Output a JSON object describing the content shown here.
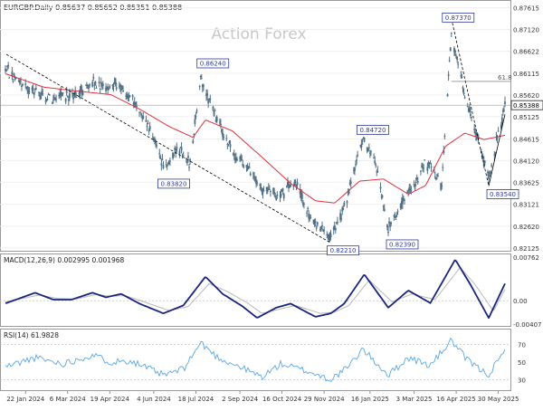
{
  "header": {
    "symbol": "EURGBP",
    "timeframe": "Daily",
    "ohlc": "0.85637 0.85652 0.85351 0.85388"
  },
  "watermark": "Action Forex",
  "colors": {
    "candle": "#4f6f86",
    "ma": "#e0303a",
    "macd": "#1a237e",
    "signal": "#b9b9b9",
    "rsi": "#5aa7e6",
    "trend": "#000000",
    "label_border": "#2d3a9c",
    "label_bg": "#ffffff"
  },
  "chart_data": {
    "type": "candlestick",
    "panels": [
      {
        "name": "price",
        "ylim": [
          0.8212,
          0.8771
        ],
        "yticks": [
          "0.87615",
          "0.87120",
          "0.86622",
          "0.86115",
          "0.85620",
          "0.85125",
          "0.84615",
          "0.84120",
          "0.83625",
          "0.83121",
          "0.82620",
          "0.82125"
        ],
        "last_price_label": "0.85388",
        "fib_label": "61.8",
        "fib_level": 0.8593,
        "price_labels": [
          {
            "text": "0.86240",
            "date": "2024-07-23",
            "value": 0.8624
          },
          {
            "text": "0.83820",
            "date": "2024-06-14",
            "value": 0.8382
          },
          {
            "text": "0.84720",
            "date": "2025-01-08",
            "value": 0.8472
          },
          {
            "text": "0.82210",
            "date": "2024-12-06",
            "value": 0.8221
          },
          {
            "text": "0.82390",
            "date": "2025-02-04",
            "value": 0.8239
          },
          {
            "text": "0.87370",
            "date": "2025-04-11",
            "value": 0.8737
          },
          {
            "text": "0.83540",
            "date": "2025-05-20",
            "value": 0.8354
          }
        ],
        "trendlines": [
          {
            "from": [
              "2024-01-02",
              0.8655
            ],
            "to": [
              "2024-12-05",
              0.8225
            ]
          },
          {
            "from": [
              "2025-04-11",
              0.8737
            ],
            "to": [
              "2025-05-20",
              0.8354
            ]
          },
          {
            "from": [
              "2025-05-20",
              0.8354
            ],
            "to": [
              "2025-06-06",
              0.8518
            ]
          }
        ],
        "ma_anchors": [
          [
            "2024-01-02",
            0.861
          ],
          [
            "2024-02-10",
            0.858
          ],
          [
            "2024-03-20",
            0.857
          ],
          [
            "2024-04-20",
            0.8563
          ],
          [
            "2024-05-20",
            0.853
          ],
          [
            "2024-06-20",
            0.849
          ],
          [
            "2024-07-15",
            0.8465
          ],
          [
            "2024-07-28",
            0.8505
          ],
          [
            "2024-08-25",
            0.848
          ],
          [
            "2024-09-25",
            0.842
          ],
          [
            "2024-10-25",
            0.836
          ],
          [
            "2024-11-20",
            0.832
          ],
          [
            "2024-12-10",
            0.8315
          ],
          [
            "2025-01-05",
            0.8365
          ],
          [
            "2025-01-30",
            0.837
          ],
          [
            "2025-02-25",
            0.8335
          ],
          [
            "2025-03-15",
            0.8355
          ],
          [
            "2025-04-05",
            0.8445
          ],
          [
            "2025-04-25",
            0.8475
          ],
          [
            "2025-05-15",
            0.846
          ],
          [
            "2025-06-06",
            0.847
          ]
        ],
        "price_anchors": [
          [
            "2024-01-02",
            0.862
          ],
          [
            "2024-01-20",
            0.858
          ],
          [
            "2024-02-15",
            0.8555
          ],
          [
            "2024-03-10",
            0.856
          ],
          [
            "2024-04-01",
            0.859
          ],
          [
            "2024-04-15",
            0.8575
          ],
          [
            "2024-04-25",
            0.859
          ],
          [
            "2024-05-10",
            0.856
          ],
          [
            "2024-05-25",
            0.851
          ],
          [
            "2024-06-05",
            0.846
          ],
          [
            "2024-06-14",
            0.8395
          ],
          [
            "2024-06-30",
            0.844
          ],
          [
            "2024-07-12",
            0.841
          ],
          [
            "2024-07-23",
            0.86
          ],
          [
            "2024-08-10",
            0.85
          ],
          [
            "2024-08-25",
            0.843
          ],
          [
            "2024-09-10",
            0.84
          ],
          [
            "2024-09-25",
            0.835
          ],
          [
            "2024-10-10",
            0.833
          ],
          [
            "2024-10-30",
            0.836
          ],
          [
            "2024-11-15",
            0.828
          ],
          [
            "2024-12-06",
            0.824
          ],
          [
            "2024-12-20",
            0.83
          ],
          [
            "2025-01-08",
            0.846
          ],
          [
            "2025-01-20",
            0.842
          ],
          [
            "2025-02-04",
            0.8255
          ],
          [
            "2025-02-20",
            0.832
          ],
          [
            "2025-03-05",
            0.836
          ],
          [
            "2025-03-15",
            0.841
          ],
          [
            "2025-04-01",
            0.836
          ],
          [
            "2025-04-11",
            0.87
          ],
          [
            "2025-04-25",
            0.856
          ],
          [
            "2025-05-10",
            0.845
          ],
          [
            "2025-05-20",
            0.837
          ],
          [
            "2025-06-06",
            0.854
          ]
        ]
      },
      {
        "name": "macd",
        "label": "MACD(12,26,9) 0.002995 0.001968",
        "ylim": [
          -0.00407,
          0.00762
        ],
        "yticks": [
          "0.00762",
          "0.00",
          "-0.00407"
        ],
        "macd_anchors": [
          [
            "2024-01-02",
            -0.0004
          ],
          [
            "2024-02-01",
            0.0014
          ],
          [
            "2024-02-20",
            0.0002
          ],
          [
            "2024-03-10",
            0.0002
          ],
          [
            "2024-04-01",
            0.0014
          ],
          [
            "2024-04-15",
            0.0006
          ],
          [
            "2024-05-01",
            0.0012
          ],
          [
            "2024-05-20",
            -0.0005
          ],
          [
            "2024-06-14",
            -0.0022
          ],
          [
            "2024-07-05",
            -0.0008
          ],
          [
            "2024-07-28",
            0.0042
          ],
          [
            "2024-08-15",
            0.0012
          ],
          [
            "2024-09-05",
            -0.001
          ],
          [
            "2024-09-20",
            -0.003
          ],
          [
            "2024-10-10",
            -0.0012
          ],
          [
            "2024-10-25",
            -0.0005
          ],
          [
            "2024-11-20",
            -0.0028
          ],
          [
            "2024-12-06",
            -0.0022
          ],
          [
            "2024-12-20",
            -0.0005
          ],
          [
            "2025-01-10",
            0.0046
          ],
          [
            "2025-02-04",
            -0.0012
          ],
          [
            "2025-02-25",
            0.0018
          ],
          [
            "2025-03-20",
            -0.0004
          ],
          [
            "2025-04-15",
            0.0072
          ],
          [
            "2025-05-01",
            0.0028
          ],
          [
            "2025-05-20",
            -0.003
          ],
          [
            "2025-06-06",
            0.003
          ]
        ],
        "signal_anchors": [
          [
            "2024-01-02",
            -0.0002
          ],
          [
            "2024-02-05",
            0.001
          ],
          [
            "2024-02-25",
            0.0004
          ],
          [
            "2024-03-15",
            0.0003
          ],
          [
            "2024-04-05",
            0.0011
          ],
          [
            "2024-04-20",
            0.0008
          ],
          [
            "2024-05-05",
            0.0009
          ],
          [
            "2024-05-25",
            -0.0002
          ],
          [
            "2024-06-20",
            -0.0017
          ],
          [
            "2024-07-10",
            -0.001
          ],
          [
            "2024-08-01",
            0.003
          ],
          [
            "2024-08-20",
            0.0016
          ],
          [
            "2024-09-10",
            -0.0004
          ],
          [
            "2024-09-25",
            -0.0022
          ],
          [
            "2024-10-15",
            -0.0014
          ],
          [
            "2024-10-30",
            -0.0008
          ],
          [
            "2024-11-25",
            -0.0022
          ],
          [
            "2024-12-10",
            -0.002
          ],
          [
            "2024-12-25",
            -0.0008
          ],
          [
            "2025-01-15",
            0.0036
          ],
          [
            "2025-02-08",
            -0.0002
          ],
          [
            "2025-03-01",
            0.0012
          ],
          [
            "2025-03-25",
            0.0002
          ],
          [
            "2025-04-20",
            0.0058
          ],
          [
            "2025-05-05",
            0.003
          ],
          [
            "2025-05-25",
            -0.0018
          ],
          [
            "2025-06-06",
            0.002
          ]
        ]
      },
      {
        "name": "rsi",
        "label": "RSI(14) 61.9828",
        "ylim": [
          20,
          85
        ],
        "yticks": [
          "70",
          "50",
          "30"
        ],
        "rsi_anchors": [
          [
            "2024-01-02",
            45
          ],
          [
            "2024-02-01",
            55
          ],
          [
            "2024-03-01",
            48
          ],
          [
            "2024-04-01",
            58
          ],
          [
            "2024-04-20",
            50
          ],
          [
            "2024-05-10",
            52
          ],
          [
            "2024-06-14",
            35
          ],
          [
            "2024-07-05",
            42
          ],
          [
            "2024-07-23",
            72
          ],
          [
            "2024-08-10",
            55
          ],
          [
            "2024-09-01",
            45
          ],
          [
            "2024-09-25",
            33
          ],
          [
            "2024-10-15",
            48
          ],
          [
            "2024-11-10",
            40
          ],
          [
            "2024-12-06",
            30
          ],
          [
            "2024-12-25",
            45
          ],
          [
            "2025-01-08",
            65
          ],
          [
            "2025-02-04",
            35
          ],
          [
            "2025-02-25",
            55
          ],
          [
            "2025-03-20",
            46
          ],
          [
            "2025-04-11",
            75
          ],
          [
            "2025-04-25",
            55
          ],
          [
            "2025-05-10",
            42
          ],
          [
            "2025-05-20",
            36
          ],
          [
            "2025-06-06",
            62
          ]
        ]
      }
    ],
    "x_range": [
      "2024-01-01",
      "2025-06-06"
    ],
    "xticks": [
      {
        "label": "22 Jan 2024",
        "date": "2024-01-22"
      },
      {
        "label": "6 Mar 2024",
        "date": "2024-03-06"
      },
      {
        "label": "19 Apr 2024",
        "date": "2024-04-19"
      },
      {
        "label": "4 Jun 2024",
        "date": "2024-06-04"
      },
      {
        "label": "18 Jul 2024",
        "date": "2024-07-18"
      },
      {
        "label": "2 Sep 2024",
        "date": "2024-09-02"
      },
      {
        "label": "16 Oct 2024",
        "date": "2024-10-16"
      },
      {
        "label": "29 Nov 2024",
        "date": "2024-11-29"
      },
      {
        "label": "16 Jan 2025",
        "date": "2025-01-16"
      },
      {
        "label": "3 Mar 2025",
        "date": "2025-03-03"
      },
      {
        "label": "16 Apr 2025",
        "date": "2025-04-16"
      },
      {
        "label": "30 May 2025",
        "date": "2025-05-30"
      }
    ]
  }
}
